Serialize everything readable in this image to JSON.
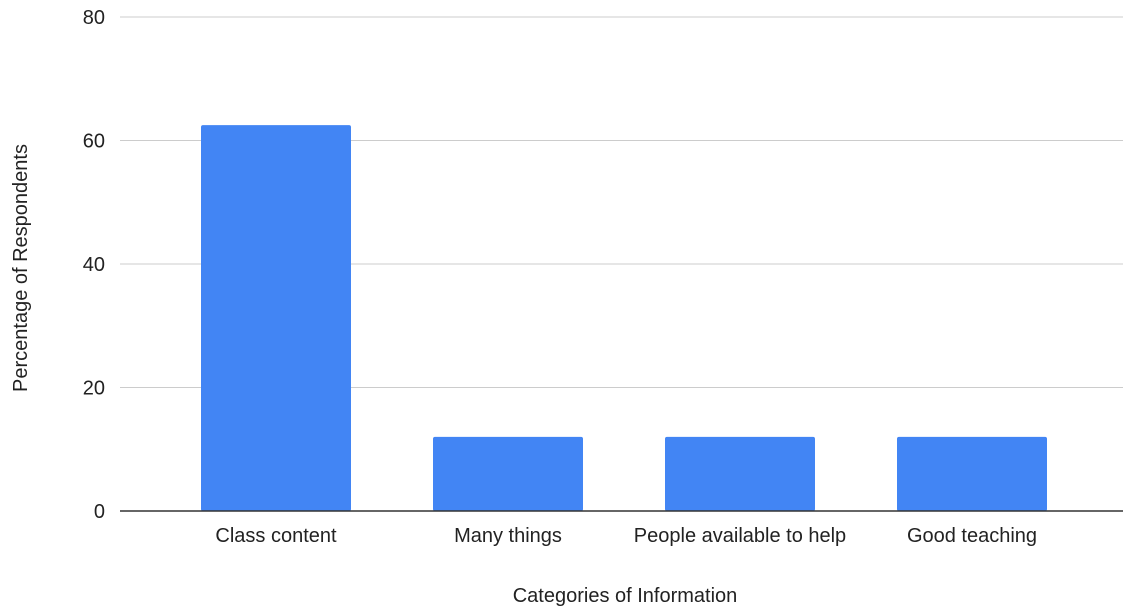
{
  "chart_data": {
    "type": "bar",
    "categories": [
      "Class content",
      "Many things",
      "People available to help",
      "Good teaching"
    ],
    "values": [
      62.5,
      12.0,
      12.0,
      12.0
    ],
    "xlabel": "Categories of Information",
    "ylabel": "Percentage of Respondents",
    "ylim": [
      0,
      80
    ],
    "yticks": [
      "0",
      "20",
      "40",
      "60",
      "80"
    ],
    "grid": true,
    "legend": "none",
    "colors": {
      "bar": "#4285f4",
      "grid": "#cccccc",
      "axis": "#333333"
    }
  }
}
